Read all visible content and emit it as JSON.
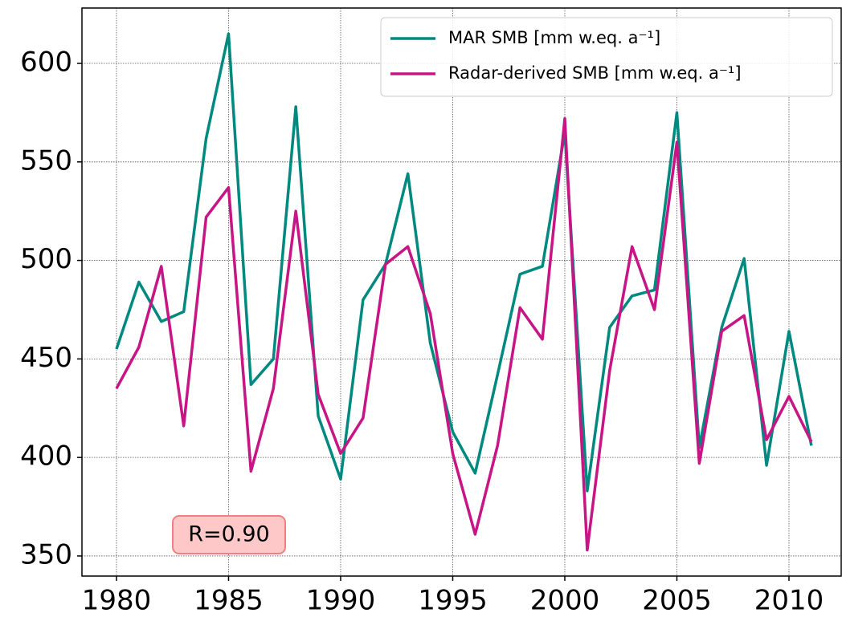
{
  "chart_data": {
    "type": "line",
    "x": [
      1980,
      1981,
      1982,
      1983,
      1984,
      1985,
      1986,
      1987,
      1988,
      1989,
      1990,
      1991,
      1992,
      1993,
      1994,
      1995,
      1996,
      1997,
      1998,
      1999,
      2000,
      2001,
      2002,
      2003,
      2004,
      2005,
      2006,
      2007,
      2008,
      2009,
      2010,
      2011
    ],
    "series": [
      {
        "name": "MAR SMB [mm w.eq. a⁻¹]",
        "color": "#00897f",
        "values": [
          455,
          489,
          469,
          474,
          562,
          615,
          437,
          450,
          578,
          421,
          389,
          480,
          498,
          544,
          458,
          413,
          392,
          442,
          493,
          497,
          565,
          383,
          466,
          482,
          485,
          575,
          405,
          466,
          501,
          396,
          464,
          406
        ]
      },
      {
        "name": "Radar-derived SMB [mm w.eq. a⁻¹]",
        "color": "#c71585",
        "values": [
          435,
          456,
          497,
          416,
          522,
          537,
          393,
          435,
          525,
          432,
          402,
          420,
          498,
          507,
          473,
          402,
          361,
          406,
          476,
          460,
          572,
          353,
          444,
          507,
          475,
          560,
          397,
          464,
          472,
          409,
          431,
          408
        ]
      }
    ],
    "xlim": [
      1978.46,
      2012.33
    ],
    "ylim": [
      339.8,
      628.1
    ],
    "xticks": [
      1980,
      1985,
      1990,
      1995,
      2000,
      2005,
      2010
    ],
    "yticks": [
      350,
      400,
      450,
      500,
      550,
      600
    ],
    "grid": true,
    "legend": "upper right",
    "annotation": "R=0.90"
  }
}
